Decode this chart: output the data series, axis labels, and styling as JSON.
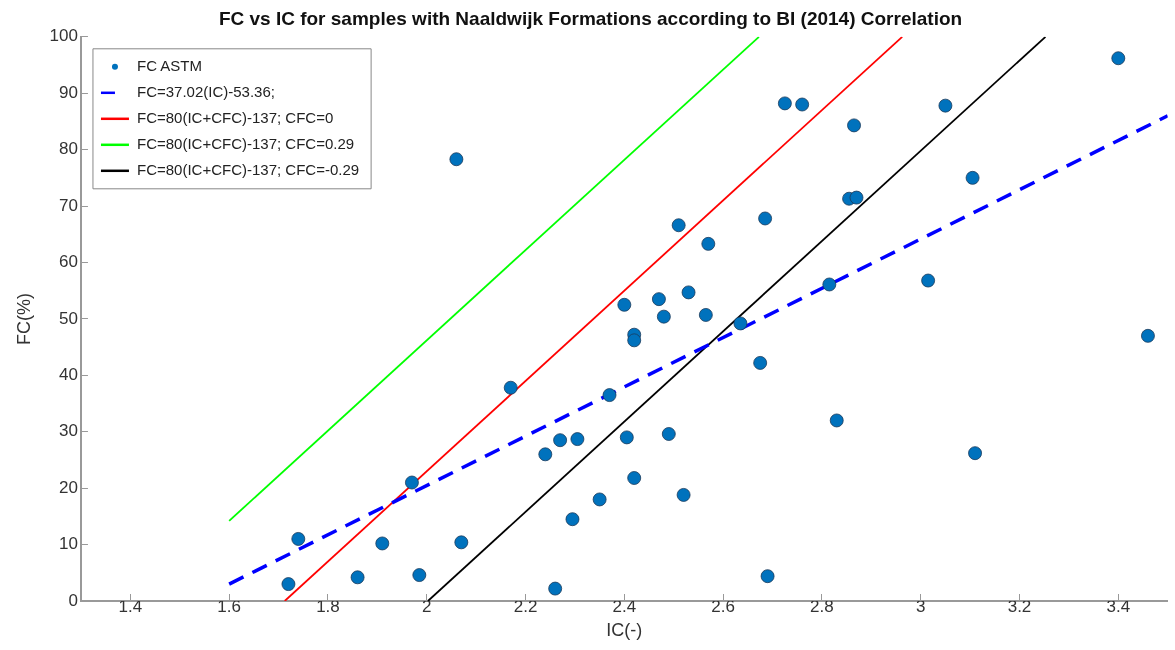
{
  "chart_data": {
    "type": "scatter",
    "title": "FC vs IC for samples with Naaldwijk Formations according to BI (2014) Correlation",
    "xlabel": "IC(-)",
    "ylabel": "FC(%)",
    "xlim": [
      1.3,
      3.5
    ],
    "ylim": [
      0,
      100
    ],
    "xticks": [
      1.4,
      1.6,
      1.8,
      2,
      2.2,
      2.4,
      2.6,
      2.8,
      3,
      3.2,
      3.4
    ],
    "yticks": [
      0,
      10,
      20,
      30,
      40,
      50,
      60,
      70,
      80,
      90,
      100
    ],
    "grid": false,
    "legend": "top left",
    "series": [
      {
        "name": "FC ASTM",
        "type": "scatter",
        "marker": "circle",
        "color": "#0072bd",
        "x": [
          1.72,
          1.74,
          1.86,
          1.91,
          1.97,
          1.985,
          2.06,
          2.07,
          2.17,
          2.24,
          2.26,
          2.27,
          2.295,
          2.305,
          2.35,
          2.37,
          2.4,
          2.405,
          2.42,
          2.42,
          2.42,
          2.47,
          2.48,
          2.49,
          2.51,
          2.52,
          2.53,
          2.565,
          2.57,
          2.635,
          2.675,
          2.685,
          2.69,
          2.725,
          2.76,
          2.815,
          2.83,
          2.855,
          2.865,
          2.87,
          3.015,
          3.05,
          3.105,
          3.11,
          3.4,
          3.46
        ],
        "values": [
          3,
          11,
          4.2,
          10.2,
          21,
          4.6,
          78.3,
          10.4,
          37.8,
          26,
          2.2,
          28.5,
          14.5,
          28.7,
          18,
          36.5,
          52.5,
          29,
          47.2,
          46.2,
          21.8,
          53.5,
          50.4,
          29.6,
          66.6,
          18.8,
          54.7,
          50.7,
          63.3,
          49.2,
          42.2,
          67.8,
          4.4,
          88.2,
          88,
          56.1,
          32,
          71.3,
          84.3,
          71.5,
          56.8,
          87.8,
          75,
          26.2,
          96.2,
          47
        ]
      },
      {
        "name": "FC=37.02(IC)-53.36;",
        "type": "line",
        "marker": "none",
        "line_style": "dashed",
        "color": "#0000ff",
        "x": [
          1.6,
          3.5
        ],
        "values": [
          3,
          86
        ]
      },
      {
        "name": "FC=80(IC+CFC)-137; CFC=0",
        "type": "line",
        "marker": "none",
        "line_style": "solid",
        "color": "#ff0000",
        "x": [
          1.7125,
          2.9625
        ],
        "values": [
          0,
          100
        ]
      },
      {
        "name": "FC=80(IC+CFC)-137; CFC=0.29",
        "type": "line",
        "marker": "none",
        "line_style": "solid",
        "color": "#00ff00",
        "x": [
          1.6,
          2.6725
        ],
        "values": [
          14.2,
          100
        ]
      },
      {
        "name": "FC=80(IC+CFC)-137; CFC=-0.29",
        "type": "line",
        "marker": "none",
        "line_style": "solid",
        "color": "#000000",
        "x": [
          2.0025,
          3.2525
        ],
        "values": [
          0,
          100
        ]
      }
    ]
  }
}
